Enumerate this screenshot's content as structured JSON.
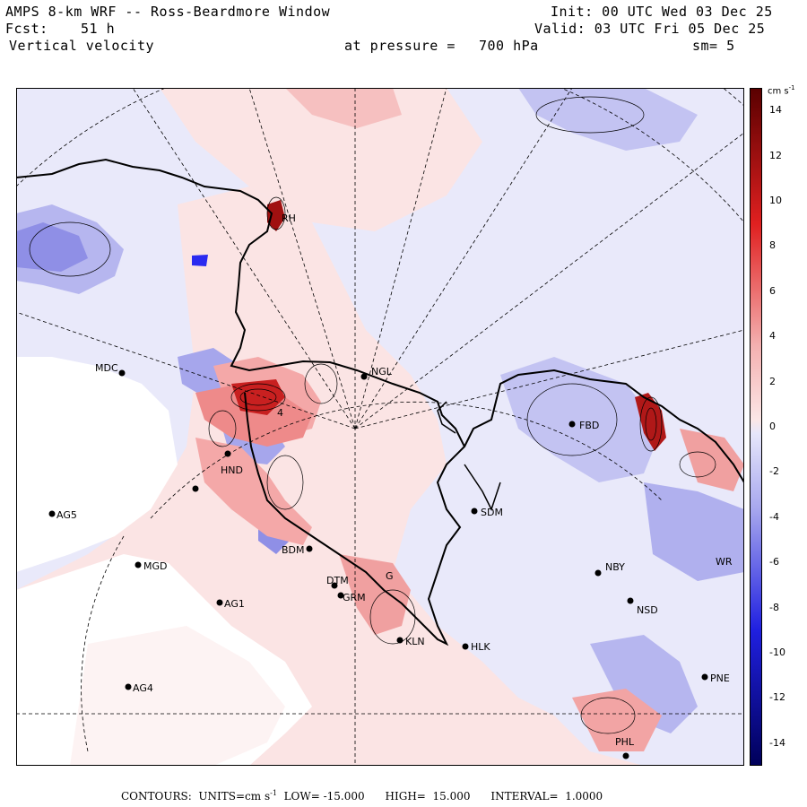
{
  "header": {
    "title": "AMPS 8-km WRF -- Ross-Beardmore Window",
    "init": "Init: 00 UTC Wed 03 Dec 25",
    "fcst_label": "Fcst:",
    "fcst_value": "51 h",
    "valid": "Valid: 03 UTC Fri 05 Dec 25",
    "field": "Vertical velocity",
    "pressure_label": "at pressure =",
    "pressure_value": "700 hPa",
    "smoothing": "sm= 5"
  },
  "colorbar": {
    "units_base": "cm s",
    "units_exp": "-1",
    "ticks": [
      "14",
      "12",
      "10",
      "8",
      "6",
      "4",
      "2",
      "0",
      "-2",
      "-4",
      "-6",
      "-8",
      "-10",
      "-12",
      "-14"
    ],
    "colors": {
      "max": "#5a0000",
      "high": "#e02020",
      "mid_pos": "#f4b0b0",
      "zero_pos": "#fbe6e6",
      "zero_neg": "#e6e6fb",
      "mid_neg": "#a8a8ee",
      "low": "#2020e0",
      "min": "#00005a"
    }
  },
  "footer": {
    "contours_label": "CONTOURS:",
    "units_label": "UNITS=cm s",
    "units_exp": "-1",
    "low_label": "LOW=",
    "low_value": "-15.000",
    "high_label": "HIGH=",
    "high_value": "15.000",
    "interval_label": "INTERVAL=",
    "interval_value": "1.0000"
  },
  "stations": {
    "mdc": "MDC",
    "ngl": "NGL",
    "sdm": "SDM",
    "ag5": "AG5",
    "mgd": "MGD",
    "ag1": "AG1",
    "ag4": "AG4",
    "bdm": "BDM",
    "kln": "KLN",
    "hlk": "HLK",
    "nby": "NBY",
    "nsd": "NSD",
    "pne": "PNE",
    "phl": "PHL",
    "rh": "RH",
    "fbd": "FBD",
    "g": "G",
    "grm": "GRM",
    "dtm": "DTM",
    "hnd": "HND",
    "wr": "WR",
    "label_4": "4"
  }
}
